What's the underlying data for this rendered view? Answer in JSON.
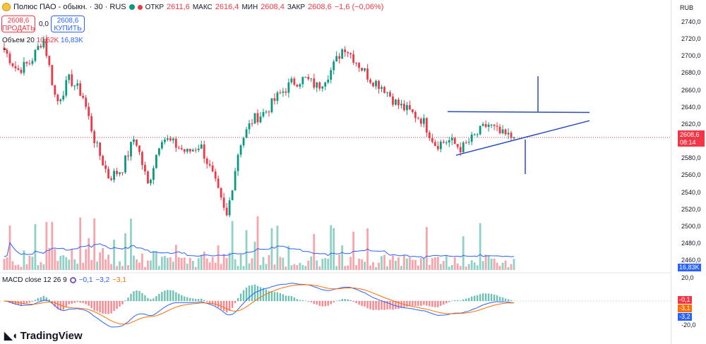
{
  "symbol": {
    "title": "Полюс ПАО - обыкн. · 30 · RUS",
    "ohlc": {
      "o_label": "ОТКР",
      "o": "2611,6",
      "h_label": "МАКС",
      "h": "2616,4",
      "l_label": "МИН",
      "l": "2608,4",
      "c_label": "ЗАКР",
      "c": "2608,6",
      "change": "−1,6 (−0,06%)"
    }
  },
  "trade": {
    "sell_price": "2608,6",
    "sell_label": "ПРОДАТЬ",
    "spread": "0,0",
    "buy_price": "2608,6",
    "buy_label": "КУПИТЬ"
  },
  "volume_legend": {
    "label": "Объем 20",
    "v1": "10,52K",
    "v2": "16,83K"
  },
  "macd_legend": {
    "label": "MACD close 12 26 9",
    "v1": "−0,1",
    "v2": "−3,2",
    "v3": "−3,1"
  },
  "axis": {
    "currency": "RUB",
    "ticks": [
      "2740,0",
      "2720,0",
      "2700,0",
      "2680,0",
      "2660,0",
      "2640,0",
      "2620,0",
      "2600,0",
      "2580,0",
      "2560,0",
      "2540,0",
      "2520,0",
      "2500,0",
      "2480,0",
      "2460,0"
    ],
    "current_price": "2608,6",
    "countdown": "08:14",
    "volume_badge": "16,83K",
    "macd_top": "20,0",
    "macd_badges": [
      "-0,1",
      "-3,1",
      "-3,2"
    ],
    "macd_bottom": "-20,0"
  },
  "brand": {
    "name": "TradingView"
  },
  "colors": {
    "up": "#089981",
    "down": "#f23645",
    "macd": "#2962ff",
    "signal": "#ff6d00",
    "trend": "#2a4bbd",
    "volma": "#2962ff"
  },
  "chart_data": {
    "type": "candlestick",
    "ylim": [
      2450,
      2750
    ],
    "ohlc_path_anchors": [
      2715,
      2690,
      2700,
      2730,
      2650,
      2680,
      2660,
      2600,
      2560,
      2570,
      2610,
      2550,
      2610,
      2600,
      2590,
      2600,
      2560,
      2510,
      2600,
      2630,
      2640,
      2660,
      2675,
      2680,
      2670,
      2690,
      2720,
      2700,
      2680,
      2670,
      2650,
      2640,
      2630,
      2600,
      2605,
      2595,
      2610,
      2625,
      2612,
      2608
    ],
    "last_price": 2608.6
  }
}
